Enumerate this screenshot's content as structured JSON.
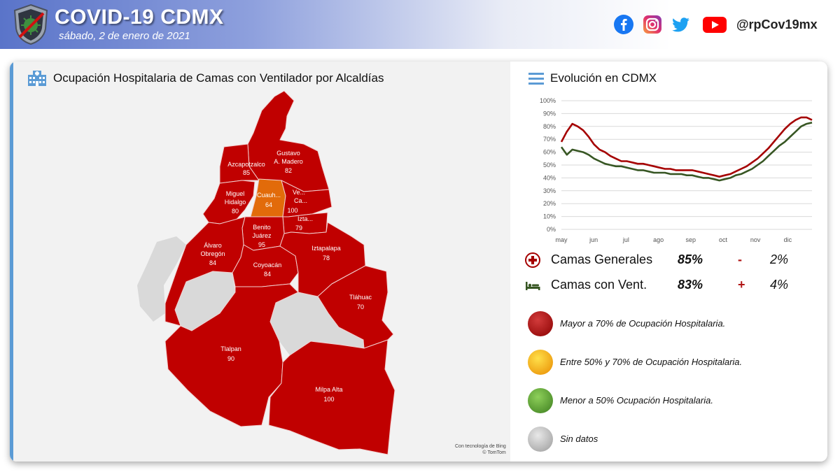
{
  "header": {
    "title": "COVID-19 CDMX",
    "date": "sábado, 2 de enero de 2021",
    "handle": "@rpCov19mx",
    "social_icons": [
      "facebook-icon",
      "instagram-icon",
      "twitter-icon",
      "youtube-icon"
    ]
  },
  "map": {
    "title": "Ocupación Hospitalaria de Camas con Ventilador por Alcaldías",
    "credit_line1": "Con tecnología de Bing",
    "credit_line2": "© TomTom",
    "alcaldias": [
      {
        "name": "Gustavo A. Madero",
        "label1": "Gustavo",
        "label2": "A. Madero",
        "value": "82",
        "status": "high"
      },
      {
        "name": "Azcapotzalco",
        "label1": "Azcapotzalco",
        "label2": "",
        "value": "85",
        "status": "high"
      },
      {
        "name": "Miguel Hidalgo",
        "label1": "Miguel",
        "label2": "Hidalgo",
        "value": "80",
        "status": "high"
      },
      {
        "name": "Cuauhtémoc",
        "label1": "Cuauh...",
        "label2": "",
        "value": "64",
        "status": "medium"
      },
      {
        "name": "Venustiano Carranza",
        "label1": "Ve...",
        "label2": "Ca...",
        "value": "100",
        "status": "high"
      },
      {
        "name": "Iztacalco",
        "label1": "Izta...",
        "label2": "",
        "value": "79",
        "status": "high"
      },
      {
        "name": "Benito Juárez",
        "label1": "Benito",
        "label2": "Juárez",
        "value": "95",
        "status": "high"
      },
      {
        "name": "Álvaro Obregón",
        "label1": "Álvaro",
        "label2": "Obregón",
        "value": "84",
        "status": "high"
      },
      {
        "name": "Coyoacán",
        "label1": "Coyoacán",
        "label2": "",
        "value": "84",
        "status": "high"
      },
      {
        "name": "Iztapalapa",
        "label1": "Iztapalapa",
        "label2": "",
        "value": "78",
        "status": "high"
      },
      {
        "name": "Tláhuac",
        "label1": "Tláhuac",
        "label2": "",
        "value": "70",
        "status": "high"
      },
      {
        "name": "Tlalpan",
        "label1": "Tlalpan",
        "label2": "",
        "value": "90",
        "status": "high"
      },
      {
        "name": "Milpa Alta",
        "label1": "Milpa Alta",
        "label2": "",
        "value": "100",
        "status": "high"
      }
    ]
  },
  "evolution": {
    "title": "Evolución en CDMX",
    "stats": [
      {
        "label": "Camas Generales",
        "value": "85%",
        "sign": "-",
        "delta": "2%",
        "icon": "cross-icon"
      },
      {
        "label": "Camas con Vent.",
        "value": "83%",
        "sign": "+",
        "delta": "4%",
        "icon": "bed-icon"
      }
    ]
  },
  "legend": [
    {
      "text": "Mayor a 70% de Ocupación Hospitalaria.",
      "color": "#b00000"
    },
    {
      "text": "Entre 50% y 70% de Ocupación Hospitalaria.",
      "color": "#f0a000"
    },
    {
      "text": "Menor a 50% Ocupación Hospitalaria.",
      "color": "#4c9a2a"
    },
    {
      "text": "Sin datos",
      "color": "#bdbdbd"
    }
  ],
  "colors": {
    "high": "#c00000",
    "medium": "#e26b0a",
    "nodata": "#d9d9d9",
    "accent": "#5b9bd5"
  },
  "chart_data": {
    "type": "line",
    "title": "",
    "xlabel": "",
    "ylabel": "",
    "x_ticks": [
      "may",
      "jun",
      "jul",
      "ago",
      "sep",
      "oct",
      "nov",
      "dic"
    ],
    "y_ticks": [
      "0%",
      "10%",
      "20%",
      "30%",
      "40%",
      "50%",
      "60%",
      "70%",
      "80%",
      "90%",
      "100%"
    ],
    "ylim": [
      0,
      100
    ],
    "grid": true,
    "series": [
      {
        "name": "Camas Generales",
        "color": "#a50000",
        "values": [
          68,
          76,
          82,
          80,
          77,
          72,
          66,
          62,
          60,
          57,
          55,
          53,
          53,
          52,
          51,
          51,
          50,
          49,
          48,
          47,
          47,
          46,
          46,
          46,
          46,
          45,
          44,
          43,
          42,
          41,
          42,
          43,
          45,
          47,
          49,
          52,
          55,
          59,
          63,
          68,
          73,
          78,
          82,
          85,
          87,
          87,
          85
        ]
      },
      {
        "name": "Camas con Vent.",
        "color": "#375623",
        "values": [
          64,
          58,
          62,
          61,
          60,
          58,
          55,
          53,
          51,
          50,
          49,
          49,
          48,
          47,
          46,
          46,
          45,
          44,
          44,
          44,
          43,
          43,
          43,
          42,
          42,
          41,
          40,
          40,
          39,
          38,
          39,
          40,
          42,
          43,
          45,
          47,
          50,
          53,
          57,
          61,
          65,
          68,
          72,
          76,
          80,
          82,
          83
        ]
      }
    ]
  }
}
